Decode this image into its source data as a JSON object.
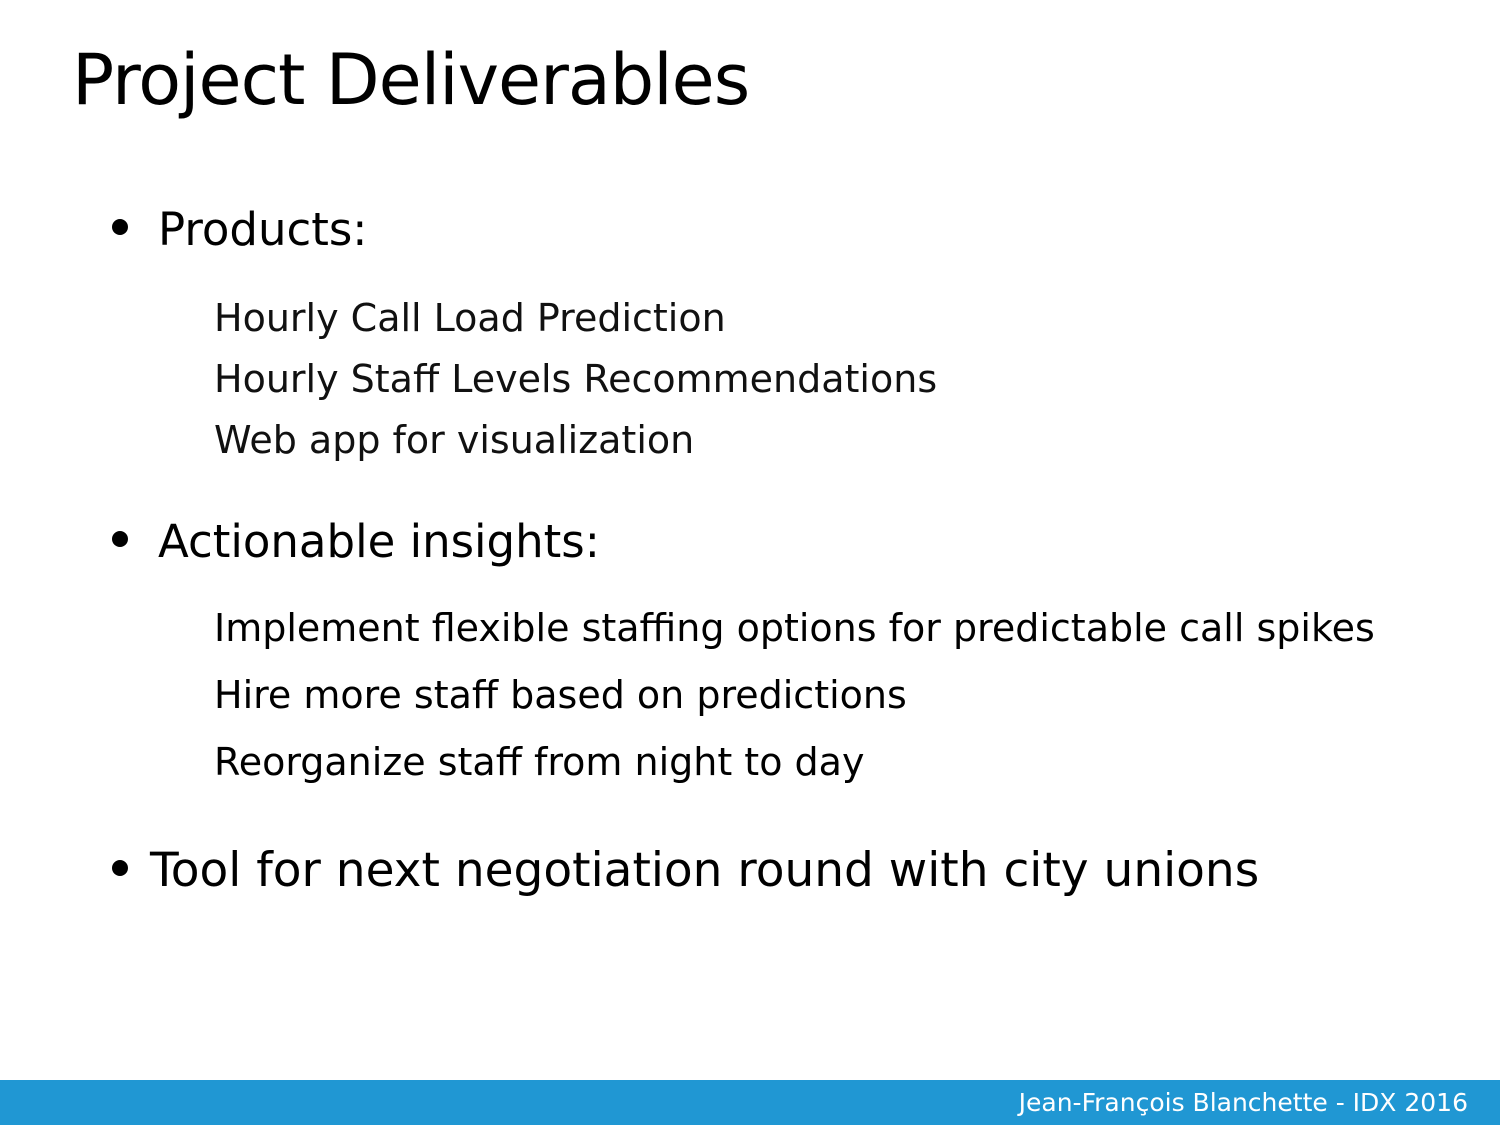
{
  "slide": {
    "title": "Project Deliverables",
    "sections": [
      {
        "heading": "Products:",
        "items": [
          "Hourly Call Load Prediction",
          "Hourly Staff Levels Recommendations",
          "Web app for visualization"
        ]
      },
      {
        "heading": "Actionable insights:",
        "items": [
          "Implement flexible staffing options for predictable call spikes",
          "Hire more staff based on predictions",
          "Reorganize staff from night to day"
        ]
      },
      {
        "heading": "Tool for next negotiation round with city unions",
        "items": []
      }
    ],
    "footer": "Jean-François Blanchette - IDX 2016",
    "colors": {
      "footer_bar": "#2097d3",
      "text": "#000000",
      "background": "#ffffff"
    }
  }
}
